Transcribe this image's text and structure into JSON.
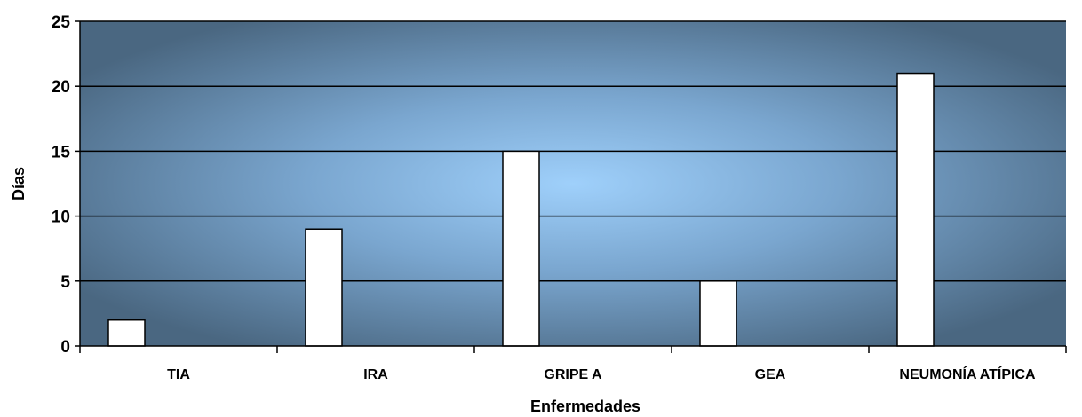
{
  "chart_data": {
    "type": "bar",
    "categories": [
      "TIA",
      "IRA",
      "GRIPE A",
      "GEA",
      "NEUMONÍA ATÍPICA"
    ],
    "values": [
      2,
      9,
      15,
      5,
      21
    ],
    "xlabel": "Enfermedades",
    "ylabel": "Días",
    "ylim": [
      0,
      25
    ],
    "yticks": [
      0,
      5,
      10,
      15,
      20,
      25
    ],
    "grid": true,
    "legend": "none",
    "colors": {
      "bar_fill": "#ffffff",
      "bar_stroke": "#000000",
      "plot_center": "#9fd0fb",
      "plot_edge": "#4a6781",
      "gridline": "#000000"
    }
  }
}
